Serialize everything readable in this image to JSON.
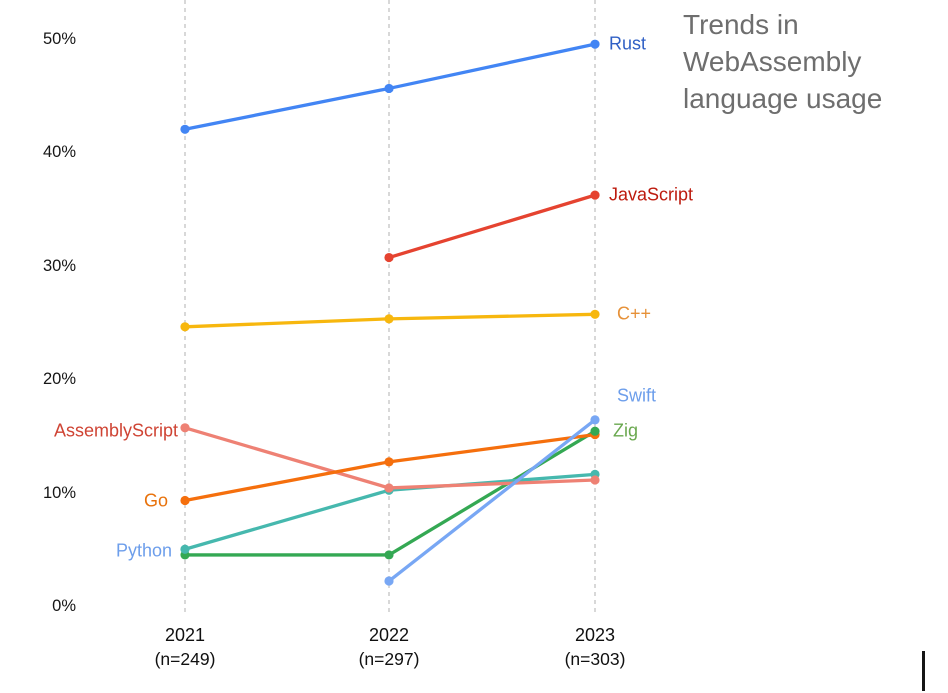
{
  "title": {
    "text": "Trends in WebAssembly language usage",
    "color": "#6e6e6e"
  },
  "chart_data": {
    "type": "line",
    "x_categories": [
      {
        "year": "2021",
        "n_label": "(n=249)"
      },
      {
        "year": "2022",
        "n_label": "(n=297)"
      },
      {
        "year": "2023",
        "n_label": "(n=303)"
      }
    ],
    "y_ticks": [
      {
        "label": "0%",
        "value": 0
      },
      {
        "label": "10%",
        "value": 10
      },
      {
        "label": "20%",
        "value": 20
      },
      {
        "label": "30%",
        "value": 30
      },
      {
        "label": "40%",
        "value": 40
      },
      {
        "label": "50%",
        "value": 50
      }
    ],
    "ylim": [
      0,
      53
    ],
    "grid": "vertical-dashed-per-year",
    "gridline_color": "#c8c8c8",
    "legend_position": "inline-series-labels",
    "series": [
      {
        "name": "Rust",
        "color": "#4285f4",
        "label_color": "#3060c5",
        "values": [
          42,
          45.6,
          49.5
        ],
        "label_side": "right",
        "label_dy": 0,
        "label_dx": 0
      },
      {
        "name": "JavaScript",
        "color": "#e54330",
        "label_color": "#bd1b0e",
        "values": [
          null,
          30.7,
          36.2
        ],
        "label_side": "right",
        "label_dy": 0,
        "label_dx": 0
      },
      {
        "name": "C++",
        "color": "#f7b70e",
        "label_color": "#e69138",
        "values": [
          24.6,
          25.3,
          25.7
        ],
        "label_side": "right",
        "label_dy": 0,
        "label_dx": 8
      },
      {
        "name": "AssemblyScript",
        "color": "#ee8174",
        "label_color": "#cf4434",
        "values": [
          15.7,
          10.4,
          11.1
        ],
        "label_side": "left",
        "label_dy": 3,
        "label_dx": 4
      },
      {
        "name": "Go",
        "color": "#f56f0d",
        "label_color": "#e8710a",
        "values": [
          9.3,
          12.7,
          15.1
        ],
        "label_side": "left",
        "label_dy": 1,
        "label_dx": -6
      },
      {
        "name": "Python",
        "color": "#46b8ae",
        "label_color": "#6d9eeb",
        "values": [
          5.0,
          10.2,
          11.6
        ],
        "label_side": "left",
        "label_dy": 2,
        "label_dx": -2
      },
      {
        "name": "Zig",
        "color": "#34a853",
        "label_color": "#6aa84f",
        "values": [
          4.5,
          4.5,
          15.4
        ],
        "label_side": "right",
        "label_dy": 0,
        "label_dx": 4
      },
      {
        "name": "Swift",
        "color": "#78a7f4",
        "label_color": "#6d9eeb",
        "values": [
          null,
          2.2,
          16.4
        ],
        "label_side": "right",
        "label_dy": -24,
        "label_dx": 8
      }
    ]
  }
}
